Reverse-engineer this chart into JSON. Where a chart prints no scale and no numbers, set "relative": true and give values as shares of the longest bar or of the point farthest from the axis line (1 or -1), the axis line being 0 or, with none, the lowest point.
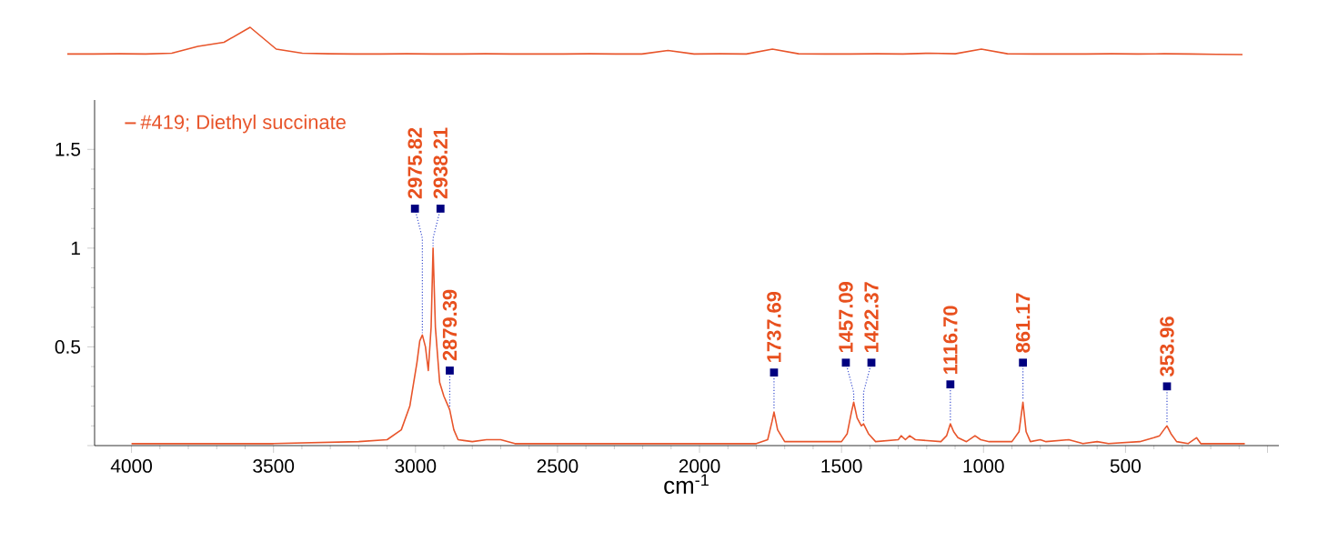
{
  "chart_data": [
    {
      "type": "line",
      "xlabel": "cm$^{-1}$",
      "legend": "top left",
      "xlim": [
        4130,
        -40
      ],
      "xticks": [
        4000,
        3500,
        3000,
        2500,
        2000,
        1500,
        1000,
        500,
        {
          "value": 0,
          "label": null
        }
      ],
      "ylim": [
        0,
        1.75
      ],
      "yticks": [
        {
          "value": 0,
          "label": null
        },
        0.5,
        1,
        1.5
      ],
      "series": [
        {
          "name": "#419; Diethyl succinate",
          "color": "#e8552b",
          "x": [
            4000,
            3500,
            3200,
            3100,
            3050,
            3020,
            2995,
            2985,
            2975.82,
            2965,
            2955,
            2945,
            2938.21,
            2930,
            2915,
            2900,
            2885,
            2879.39,
            2865,
            2850,
            2800,
            2750,
            2700,
            2650,
            2000,
            1800,
            1760,
            1745,
            1737.69,
            1725,
            1700,
            1500,
            1480,
            1465,
            1457.09,
            1445,
            1430,
            1422.37,
            1405,
            1380,
            1300,
            1290,
            1275,
            1260,
            1240,
            1150,
            1130,
            1116.7,
            1105,
            1090,
            1060,
            1030,
            1010,
            980,
            950,
            900,
            875,
            861.17,
            850,
            835,
            800,
            780,
            700,
            650,
            600,
            560,
            450,
            400,
            380,
            365,
            353.96,
            340,
            320,
            280,
            250,
            235,
            80
          ],
          "values": [
            0.01,
            0.01,
            0.02,
            0.03,
            0.08,
            0.2,
            0.42,
            0.53,
            0.56,
            0.5,
            0.38,
            0.6,
            1.0,
            0.6,
            0.32,
            0.25,
            0.2,
            0.18,
            0.08,
            0.03,
            0.02,
            0.03,
            0.03,
            0.01,
            0.01,
            0.01,
            0.03,
            0.12,
            0.17,
            0.08,
            0.02,
            0.02,
            0.06,
            0.17,
            0.22,
            0.14,
            0.1,
            0.11,
            0.06,
            0.02,
            0.03,
            0.05,
            0.03,
            0.05,
            0.03,
            0.02,
            0.05,
            0.11,
            0.07,
            0.04,
            0.02,
            0.05,
            0.03,
            0.02,
            0.02,
            0.02,
            0.07,
            0.22,
            0.07,
            0.02,
            0.03,
            0.02,
            0.03,
            0.01,
            0.02,
            0.01,
            0.02,
            0.04,
            0.05,
            0.08,
            0.1,
            0.06,
            0.02,
            0.01,
            0.04,
            0.01,
            0.01
          ]
        }
      ],
      "annotations": [
        {
          "text": "2975.82",
          "x": 2975.82,
          "y": 0.56
        },
        {
          "text": "2938.21",
          "x": 2938.21,
          "y": 1.0
        },
        {
          "text": "2879.39",
          "x": 2879.39,
          "y": 0.18
        },
        {
          "text": "1737.69",
          "x": 1737.69,
          "y": 0.17
        },
        {
          "text": "1457.09",
          "x": 1457.09,
          "y": 0.22
        },
        {
          "text": "1422.37",
          "x": 1422.37,
          "y": 0.11
        },
        {
          "text": "1116.70",
          "x": 1116.7,
          "y": 0.11
        },
        {
          "text": "861.17",
          "x": 861.17,
          "y": 0.22
        },
        {
          "text": "353.96",
          "x": 353.96,
          "y": 0.1
        }
      ]
    },
    {
      "type": "line",
      "relative": true,
      "color": "#e8552b",
      "categories": [
        null,
        null,
        null,
        null,
        null,
        null,
        null,
        null,
        null,
        null,
        null,
        null,
        null,
        null,
        null,
        null,
        null,
        null,
        null,
        null,
        null,
        null,
        null,
        null,
        null,
        null,
        null,
        null,
        null,
        null,
        null,
        null,
        null,
        null,
        null,
        null,
        null,
        null,
        null,
        null,
        null,
        null,
        null,
        null,
        null,
        null
      ],
      "values": [
        0.02,
        0.02,
        0.03,
        0.02,
        0.05,
        0.3,
        0.45,
        1.0,
        0.2,
        0.05,
        0.03,
        0.02,
        0.02,
        0.03,
        0.02,
        0.02,
        0.03,
        0.02,
        0.02,
        0.02,
        0.03,
        0.02,
        0.02,
        0.15,
        0.02,
        0.03,
        0.02,
        0.2,
        0.03,
        0.02,
        0.02,
        0.03,
        0.02,
        0.05,
        0.03,
        0.2,
        0.03,
        0.02,
        0.02,
        0.02,
        0.03,
        0.02,
        0.03,
        0.02,
        0.01,
        0.0
      ]
    }
  ]
}
